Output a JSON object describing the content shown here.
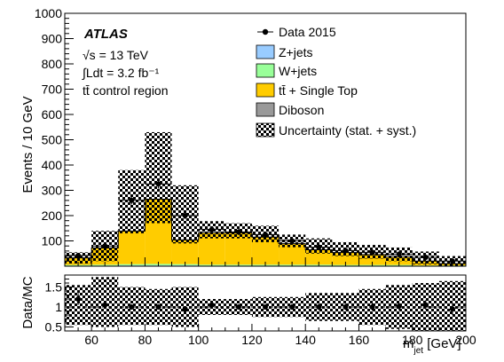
{
  "chart_data": [
    {
      "type": "stacked-histogram",
      "xlim": [
        50,
        200
      ],
      "ylim": [
        0,
        1000
      ],
      "bin_width": 10,
      "bin_edges": [
        50,
        60,
        70,
        80,
        90,
        100,
        110,
        120,
        130,
        140,
        150,
        160,
        170,
        180,
        190,
        200
      ],
      "ylabel": "Events / 10 GeV",
      "yticks": [
        100,
        200,
        300,
        400,
        500,
        600,
        700,
        800,
        900,
        1000
      ],
      "ytick_labels": [
        "100",
        "200",
        "300",
        "400",
        "500",
        "600",
        "700",
        "800",
        "900",
        "1000"
      ],
      "series": [
        {
          "name": "Z+jets",
          "color": "#99ccff",
          "values": [
            2,
            2,
            3,
            3,
            3,
            2,
            2,
            2,
            2,
            2,
            2,
            2,
            2,
            1,
            1
          ]
        },
        {
          "name": "W+jets",
          "color": "#99ff99",
          "values": [
            3,
            4,
            5,
            6,
            5,
            4,
            4,
            4,
            4,
            4,
            3,
            3,
            3,
            2,
            2
          ]
        },
        {
          "name": "tt̄ + Single Top",
          "color": "#ffcc00",
          "values": [
            27,
            65,
            130,
            255,
            95,
            125,
            125,
            108,
            82,
            58,
            48,
            40,
            30,
            17,
            6
          ]
        },
        {
          "name": "Diboson",
          "color": "#999999",
          "values": [
            1,
            1,
            1,
            1,
            1,
            1,
            1,
            1,
            1,
            1,
            1,
            1,
            1,
            1,
            1
          ]
        }
      ],
      "mc_total": [
        33,
        72,
        139,
        265,
        104,
        132,
        132,
        115,
        89,
        65,
        54,
        46,
        36,
        20,
        10
      ],
      "uncertainty": {
        "name": "Uncertainty (stat. + syst.)",
        "up": [
          55,
          140,
          380,
          530,
          320,
          178,
          170,
          160,
          125,
          110,
          95,
          84,
          74,
          58,
          40
        ],
        "down": [
          10,
          20,
          130,
          170,
          90,
          110,
          110,
          95,
          75,
          50,
          40,
          30,
          20,
          8,
          0
        ]
      },
      "data": {
        "name": "Data 2015",
        "values": [
          42,
          80,
          260,
          325,
          200,
          145,
          135,
          125,
          100,
          75,
          62,
          55,
          48,
          35,
          20
        ],
        "errors": [
          6,
          9,
          16,
          18,
          14,
          12,
          12,
          11,
          10,
          9,
          8,
          7,
          7,
          6,
          4
        ]
      },
      "annotations": {
        "experiment": "ATLAS",
        "energy": "√s = 13 TeV",
        "lumi": "∫Ldt = 3.2 fb⁻¹",
        "region": "tt̄ control region"
      }
    },
    {
      "type": "ratio",
      "xlim": [
        50,
        200
      ],
      "ylim": [
        0.4,
        1.8
      ],
      "ylabel": "Data/MC",
      "yticks": [
        0.5,
        1,
        1.5
      ],
      "ytick_labels": [
        "0.5",
        "1",
        "1.5"
      ],
      "xlabel": "m_jet [GeV]",
      "xticks": [
        60,
        80,
        100,
        120,
        140,
        160,
        180,
        200
      ],
      "xtick_labels": [
        "60",
        "80",
        "100",
        "120",
        "140",
        "160",
        "180",
        "200"
      ],
      "ratio_values": [
        1.2,
        1.05,
        1.0,
        1.0,
        0.95,
        1.05,
        1.0,
        1.0,
        1.0,
        1.0,
        1.0,
        1.0,
        1.02,
        1.05,
        0.95
      ],
      "ratio_errors": [
        0.15,
        0.1,
        0.06,
        0.05,
        0.07,
        0.06,
        0.06,
        0.06,
        0.07,
        0.08,
        0.08,
        0.09,
        0.1,
        0.12,
        0.15
      ],
      "unc_up": [
        1.55,
        1.75,
        1.5,
        1.45,
        1.5,
        1.2,
        1.2,
        1.25,
        1.25,
        1.35,
        1.35,
        1.45,
        1.55,
        1.6,
        1.65
      ],
      "unc_down": [
        0.55,
        0.5,
        0.55,
        0.55,
        0.5,
        0.8,
        0.8,
        0.75,
        0.75,
        0.65,
        0.65,
        0.55,
        0.45,
        0.4,
        0.4
      ]
    }
  ]
}
